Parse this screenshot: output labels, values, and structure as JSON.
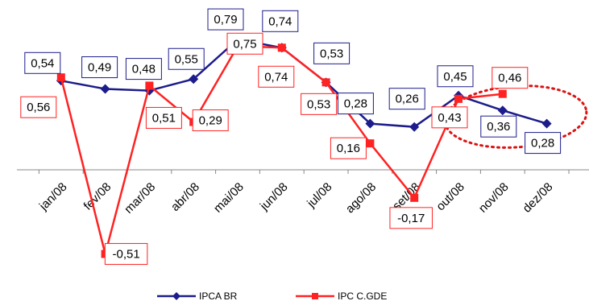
{
  "chart_data": {
    "type": "line",
    "title": "",
    "xlabel": "",
    "ylabel": "",
    "categories": [
      "jan/08",
      "fev/08",
      "mar/08",
      "abr/08",
      "mai/08",
      "jun/08",
      "jul/08",
      "ago/08",
      "set/08",
      "out/08",
      "nov/08",
      "dez/08"
    ],
    "ylim": [
      -0.8,
      0.9
    ],
    "grid": false,
    "legend_position": "bottom",
    "series": [
      {
        "name": "IPCA BR",
        "color": "#1c1c8c",
        "marker": "diamond",
        "values": [
          0.54,
          0.49,
          0.48,
          0.55,
          0.79,
          0.74,
          0.53,
          0.28,
          0.26,
          0.45,
          0.36,
          0.28
        ],
        "data_labels": [
          "0,54",
          "0,49",
          "0,48",
          "0,55",
          "0,79",
          "0,74",
          "0,53",
          "0,28",
          "0,26",
          "0,45",
          "0,36",
          "0,28"
        ]
      },
      {
        "name": "IPC C.GDE",
        "color": "#ff2222",
        "marker": "square",
        "values": [
          0.56,
          -0.51,
          0.51,
          0.29,
          0.75,
          0.74,
          0.53,
          0.16,
          -0.17,
          0.43,
          0.46,
          null
        ],
        "data_labels": [
          "0,56",
          "-0,51",
          "0,51",
          "0,29",
          "0,75",
          "0,74",
          "0,53",
          "0,16",
          "-0,17",
          "0,43",
          "0,46",
          ""
        ]
      }
    ],
    "annotations": [
      {
        "type": "dotted-ellipse",
        "color": "#dd1111",
        "around": [
          "out/08",
          "nov/08",
          "dez/08"
        ]
      }
    ]
  }
}
